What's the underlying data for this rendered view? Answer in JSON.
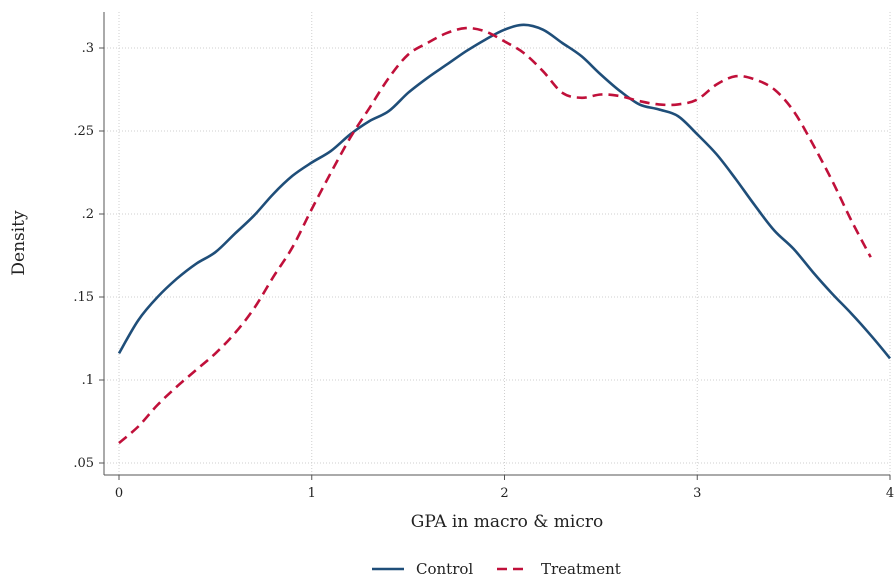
{
  "chart_data": {
    "type": "line",
    "xlabel": "GPA in macro & micro",
    "ylabel": "Density",
    "xlim": [
      0,
      4
    ],
    "ylim": [
      0.05,
      0.32
    ],
    "xticks": [
      {
        "v": 0,
        "label": "0"
      },
      {
        "v": 1,
        "label": "1"
      },
      {
        "v": 2,
        "label": "2"
      },
      {
        "v": 3,
        "label": "3"
      },
      {
        "v": 4,
        "label": "4"
      }
    ],
    "yticks": [
      {
        "v": 0.05,
        "label": ".05"
      },
      {
        "v": 0.1,
        "label": ".1"
      },
      {
        "v": 0.15,
        "label": ".15"
      },
      {
        "v": 0.2,
        "label": ".2"
      },
      {
        "v": 0.25,
        "label": ".25"
      },
      {
        "v": 0.3,
        "label": ".3"
      }
    ],
    "grid": true,
    "legend_position": "bottom",
    "series": [
      {
        "name": "Control",
        "color": "#1f4e79",
        "dash": "solid",
        "points": [
          [
            0,
            0.116
          ],
          [
            0.1,
            0.136
          ],
          [
            0.2,
            0.15
          ],
          [
            0.3,
            0.161
          ],
          [
            0.4,
            0.17
          ],
          [
            0.5,
            0.177
          ],
          [
            0.6,
            0.188
          ],
          [
            0.7,
            0.199
          ],
          [
            0.8,
            0.212
          ],
          [
            0.9,
            0.223
          ],
          [
            1.0,
            0.231
          ],
          [
            1.1,
            0.238
          ],
          [
            1.2,
            0.248
          ],
          [
            1.3,
            0.256
          ],
          [
            1.4,
            0.262
          ],
          [
            1.5,
            0.273
          ],
          [
            1.6,
            0.282
          ],
          [
            1.7,
            0.29
          ],
          [
            1.8,
            0.298
          ],
          [
            1.9,
            0.305
          ],
          [
            2.0,
            0.311
          ],
          [
            2.1,
            0.314
          ],
          [
            2.2,
            0.311
          ],
          [
            2.3,
            0.303
          ],
          [
            2.4,
            0.295
          ],
          [
            2.5,
            0.284
          ],
          [
            2.6,
            0.274
          ],
          [
            2.7,
            0.266
          ],
          [
            2.8,
            0.263
          ],
          [
            2.9,
            0.259
          ],
          [
            3.0,
            0.248
          ],
          [
            3.1,
            0.236
          ],
          [
            3.2,
            0.221
          ],
          [
            3.3,
            0.205
          ],
          [
            3.4,
            0.19
          ],
          [
            3.5,
            0.179
          ],
          [
            3.6,
            0.165
          ],
          [
            3.7,
            0.152
          ],
          [
            3.8,
            0.14
          ],
          [
            3.9,
            0.127
          ],
          [
            4.0,
            0.113
          ]
        ]
      },
      {
        "name": "Treatment",
        "color": "#c0103a",
        "dash": "dashed",
        "points": [
          [
            0,
            0.062
          ],
          [
            0.1,
            0.072
          ],
          [
            0.2,
            0.085
          ],
          [
            0.3,
            0.096
          ],
          [
            0.4,
            0.106
          ],
          [
            0.5,
            0.116
          ],
          [
            0.6,
            0.128
          ],
          [
            0.7,
            0.143
          ],
          [
            0.8,
            0.162
          ],
          [
            0.9,
            0.18
          ],
          [
            1.0,
            0.203
          ],
          [
            1.1,
            0.225
          ],
          [
            1.2,
            0.246
          ],
          [
            1.3,
            0.264
          ],
          [
            1.4,
            0.282
          ],
          [
            1.5,
            0.296
          ],
          [
            1.6,
            0.303
          ],
          [
            1.7,
            0.309
          ],
          [
            1.8,
            0.312
          ],
          [
            1.9,
            0.31
          ],
          [
            2.0,
            0.304
          ],
          [
            2.1,
            0.297
          ],
          [
            2.2,
            0.286
          ],
          [
            2.3,
            0.273
          ],
          [
            2.4,
            0.27
          ],
          [
            2.5,
            0.272
          ],
          [
            2.6,
            0.271
          ],
          [
            2.7,
            0.268
          ],
          [
            2.8,
            0.266
          ],
          [
            2.9,
            0.266
          ],
          [
            3.0,
            0.269
          ],
          [
            3.1,
            0.278
          ],
          [
            3.2,
            0.283
          ],
          [
            3.3,
            0.281
          ],
          [
            3.4,
            0.275
          ],
          [
            3.5,
            0.262
          ],
          [
            3.6,
            0.242
          ],
          [
            3.7,
            0.22
          ],
          [
            3.8,
            0.196
          ],
          [
            3.9,
            0.174
          ]
        ]
      }
    ]
  }
}
